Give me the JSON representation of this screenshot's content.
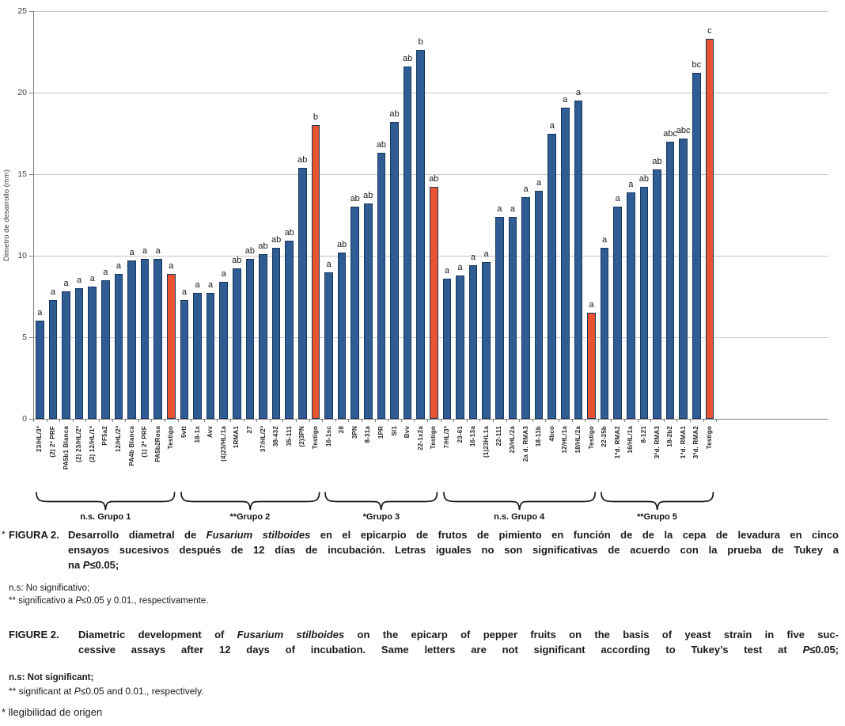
{
  "figure": {
    "caption_es": {
      "marker": "*",
      "label": "FIGURA 2.",
      "lines": [
        [
          {
            "t": "Desarrollo diametral de ",
            "b": true
          },
          {
            "t": "Fusarium stilboides",
            "b": true,
            "i": true
          },
          {
            "t": " en el epicarpio de frutos de pimiento en función de de la cepa de levadura en cinco",
            "b": true
          }
        ],
        [
          {
            "t": "ensayos sucesivos después de 12 días de incubación. Letras iguales no son significativas de acuerdo con la prueba de Tukey a",
            "b": true
          }
        ],
        [
          {
            "t": "na ",
            "b": true
          },
          {
            "t": "P",
            "b": true,
            "i": true
          },
          {
            "t": "≤0.05;",
            "b": true
          }
        ]
      ]
    },
    "notes_es": [
      [
        {
          "t": "n.s: No significativo;"
        }
      ],
      [
        {
          "t": "** significativo a "
        },
        {
          "t": "P",
          "i": true
        },
        {
          "t": "≤0.05 y 0.01., respectivamente."
        }
      ]
    ],
    "caption_en": {
      "label": "FIGURE 2.",
      "lines": [
        [
          {
            "t": "Diametric development of ",
            "b": true
          },
          {
            "t": "Fusarium stilboides",
            "b": true,
            "i": true
          },
          {
            "t": " on the epicarp of pepper fruits on the basis of yeast strain in five suc-",
            "b": true
          }
        ],
        [
          {
            "t": "cessive assays after 12 days of incubation. Same letters are not significant according to Tukey’s test at ",
            "b": true
          },
          {
            "t": "P",
            "b": true,
            "i": true
          },
          {
            "t": "≤0.05;",
            "b": true
          }
        ]
      ]
    },
    "notes_en": [
      [
        {
          "t": "n.s: Not significant;",
          "b": true
        }
      ],
      [
        {
          "t": "** significant at "
        },
        {
          "t": "P",
          "i": true
        },
        {
          "t": "≤0.05 and 0.01., respectively."
        }
      ]
    ],
    "bottom_note": "* llegibilidad de origen"
  },
  "chart_data": {
    "type": "bar",
    "title": "",
    "xlabel": "",
    "ylabel": "Dimetro de desarrollo (mm)",
    "ylim": [
      0,
      25
    ],
    "yticks": [
      0,
      5,
      10,
      15,
      20,
      25
    ],
    "grid": true,
    "legend": false,
    "bar_color": "#2e5c93",
    "control_color": "#e85430",
    "groups": [
      {
        "label": "n.s. Grupo 1",
        "bars": [
          {
            "label": "23/HL/3ª",
            "value": 6.0,
            "letter": "a"
          },
          {
            "label": "(2) 2ª PRF",
            "value": 7.3,
            "letter": "a"
          },
          {
            "label": "PA5b1 Blanca",
            "value": 7.8,
            "letter": "a"
          },
          {
            "label": "(2) 23/HL/2ª",
            "value": 8.0,
            "letter": "a"
          },
          {
            "label": "(2) 12/HL/1ª",
            "value": 8.1,
            "letter": "a"
          },
          {
            "label": "PF5a2",
            "value": 8.5,
            "letter": "a"
          },
          {
            "label": "12/HL/2ª",
            "value": 8.9,
            "letter": "a"
          },
          {
            "label": "PA4b Blanca",
            "value": 9.7,
            "letter": "a"
          },
          {
            "label": "(1) 2ª PRF",
            "value": 9.8,
            "letter": "a"
          },
          {
            "label": "PA5b2Rosa",
            "value": 9.8,
            "letter": "a"
          },
          {
            "label": "Testigo",
            "value": 8.9,
            "letter": "a",
            "control": true
          }
        ]
      },
      {
        "label": "**Grupo 2",
        "bars": [
          {
            "label": "5vtt",
            "value": 7.3,
            "letter": "a"
          },
          {
            "label": "18-1x",
            "value": 7.7,
            "letter": "a"
          },
          {
            "label": "Avv",
            "value": 7.7,
            "letter": "a"
          },
          {
            "label": "(4)23/HL/1a",
            "value": 8.4,
            "letter": "a"
          },
          {
            "label": "1RMA1",
            "value": 9.2,
            "letter": "ab"
          },
          {
            "label": "27",
            "value": 9.8,
            "letter": "ab"
          },
          {
            "label": "37/HL/2ª",
            "value": 10.1,
            "letter": "ab"
          },
          {
            "label": "38-432",
            "value": 10.5,
            "letter": "ab"
          },
          {
            "label": "35-111",
            "value": 10.9,
            "letter": "ab"
          },
          {
            "label": "(2)3PN",
            "value": 15.4,
            "letter": "ab"
          },
          {
            "label": "Testigo",
            "value": 18.0,
            "letter": "b",
            "control": true
          }
        ]
      },
      {
        "label": "*Grupo 3",
        "bars": [
          {
            "label": "16-1sc",
            "value": 9.0,
            "letter": "a"
          },
          {
            "label": "28",
            "value": 10.2,
            "letter": "ab"
          },
          {
            "label": "3PN",
            "value": 13.0,
            "letter": "ab"
          },
          {
            "label": "8-31a",
            "value": 13.2,
            "letter": "ab"
          },
          {
            "label": "1PR",
            "value": 16.3,
            "letter": "ab"
          },
          {
            "label": "SI1",
            "value": 18.2,
            "letter": "ab"
          },
          {
            "label": "Bvv",
            "value": 21.6,
            "letter": "ab"
          },
          {
            "label": "22-1x2a",
            "value": 22.6,
            "letter": "b"
          },
          {
            "label": "Testigo",
            "value": 14.2,
            "letter": "ab",
            "control": true
          }
        ]
      },
      {
        "label": "n.s. Grupo 4",
        "bars": [
          {
            "label": "7/HL/3ª",
            "value": 8.6,
            "letter": "a"
          },
          {
            "label": "23-61",
            "value": 8.8,
            "letter": "a"
          },
          {
            "label": "16-13a",
            "value": 9.4,
            "letter": "a"
          },
          {
            "label": "(1)23HL1a",
            "value": 9.6,
            "letter": "a"
          },
          {
            "label": "22-111",
            "value": 12.4,
            "letter": "a"
          },
          {
            "label": "23/HL/2a",
            "value": 12.4,
            "letter": "a"
          },
          {
            "label": "2a d. RMA3",
            "value": 13.6,
            "letter": "a"
          },
          {
            "label": "18-11b",
            "value": 14.0,
            "letter": "a"
          },
          {
            "label": "4bco",
            "value": 17.5,
            "letter": "a"
          },
          {
            "label": "12/HL/1a",
            "value": 19.1,
            "letter": "a"
          },
          {
            "label": "18/HL/2a",
            "value": 19.5,
            "letter": "a"
          },
          {
            "label": "Testigo",
            "value": 6.5,
            "letter": "a",
            "control": true
          }
        ]
      },
      {
        "label": "**Grupo 5",
        "bars": [
          {
            "label": "22-25b",
            "value": 10.5,
            "letter": "a"
          },
          {
            "label": "1ªd. RMA2",
            "value": 13.0,
            "letter": "a"
          },
          {
            "label": "16/HL/1a",
            "value": 13.9,
            "letter": "a"
          },
          {
            "label": "8-121",
            "value": 14.2,
            "letter": "ab"
          },
          {
            "label": "3ªd. RMA3",
            "value": 15.3,
            "letter": "ab"
          },
          {
            "label": "18-2b2",
            "value": 17.0,
            "letter": "abc"
          },
          {
            "label": "1ªd. RMA1",
            "value": 17.2,
            "letter": "abc"
          },
          {
            "label": "3ªd. RMA2",
            "value": 21.2,
            "letter": "bc"
          },
          {
            "label": "Testigo",
            "value": 23.3,
            "letter": "c",
            "control": true
          }
        ]
      }
    ]
  }
}
